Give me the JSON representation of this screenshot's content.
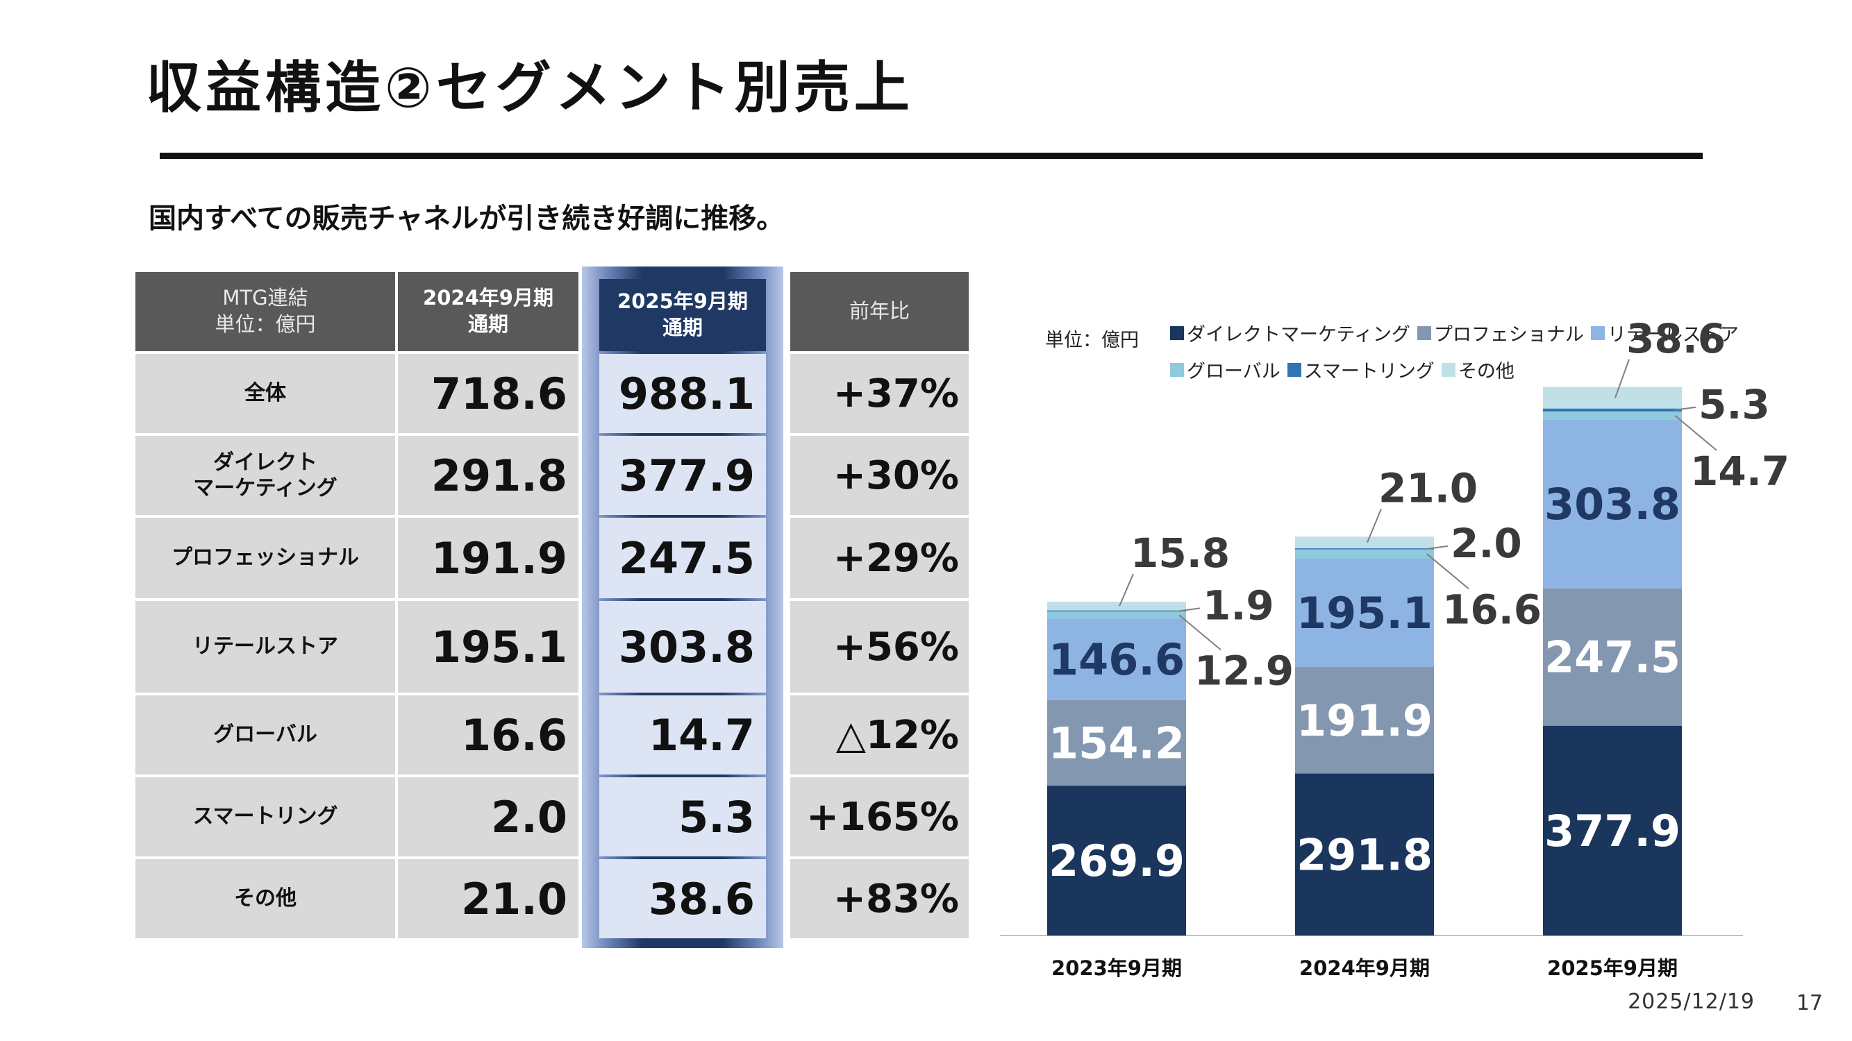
{
  "title": "収益構造②セグメント別売上",
  "subtitle": "国内すべての販売チャネルが引き続き好調に推移。",
  "table": {
    "header": {
      "col0_line1": "MTG連結",
      "col0_line2": "単位：億円",
      "col1_line1": "2024年9月期",
      "col1_line2": "通期",
      "col2_line1": "2025年9月期",
      "col2_line2": "通期",
      "col3": "前年比"
    },
    "rows": [
      {
        "label": "全体",
        "label2": "",
        "v2024": "718.6",
        "v2025": "988.1",
        "yoy": "+37%"
      },
      {
        "label": "ダイレクト",
        "label2": "マーケティング",
        "v2024": "291.8",
        "v2025": "377.9",
        "yoy": "+30%"
      },
      {
        "label": "プロフェッショナル",
        "label2": "",
        "v2024": "191.9",
        "v2025": "247.5",
        "yoy": "+29%"
      },
      {
        "label": "リテールストア",
        "label2": "",
        "v2024": "195.1",
        "v2025": "303.8",
        "yoy": "+56%"
      },
      {
        "label": "グローバル",
        "label2": "",
        "v2024": "16.6",
        "v2025": "14.7",
        "yoy": "△12%"
      },
      {
        "label": "スマートリング",
        "label2": "",
        "v2024": "2.0",
        "v2025": "5.3",
        "yoy": "+165%"
      },
      {
        "label": "その他",
        "label2": "",
        "v2024": "21.0",
        "v2025": "38.6",
        "yoy": "+83%"
      }
    ],
    "highlight_color": "#1f3864"
  },
  "chart_unit": "単位：億円",
  "chart_data": {
    "type": "bar",
    "stacked": true,
    "categories": [
      "2023年9月期",
      "2024年9月期",
      "2025年9月期"
    ],
    "series": [
      {
        "name": "ダイレクトマーケティング",
        "color": "#1b365d",
        "values": [
          269.9,
          291.8,
          377.9
        ]
      },
      {
        "name": "プロフェショナル",
        "color": "#8497b0",
        "values": [
          154.2,
          191.9,
          247.5
        ]
      },
      {
        "name": "リテールストア",
        "color": "#8eb4e3",
        "values": [
          146.6,
          195.1,
          303.8
        ]
      },
      {
        "name": "グローバル",
        "color": "#8ec9dd",
        "values": [
          12.9,
          16.6,
          14.7
        ]
      },
      {
        "name": "スマートリング",
        "color": "#2e75b6",
        "values": [
          1.9,
          2.0,
          5.3
        ]
      },
      {
        "name": "その他",
        "color": "#bfe0e6",
        "values": [
          15.8,
          21.0,
          38.6
        ]
      }
    ],
    "ylim": [
      0,
      1000
    ],
    "legend": "top",
    "grid": false
  },
  "footer": {
    "date": "2025/12/19",
    "page": "17"
  }
}
